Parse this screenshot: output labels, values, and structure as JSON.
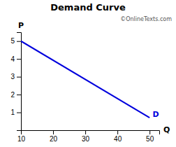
{
  "chart_data": {
    "type": "line",
    "title": "Demand Curve",
    "xlabel": "Q",
    "ylabel": "P",
    "x": [
      10,
      50
    ],
    "values": [
      5,
      0.7
    ],
    "color": "#0000DD",
    "xlim": [
      10,
      53
    ],
    "ylim": [
      0,
      5.5
    ],
    "xticks": [
      10,
      20,
      30,
      40,
      50
    ],
    "yticks": [
      1,
      2,
      3,
      4,
      5
    ],
    "grid": false,
    "annotations": [
      {
        "text": "D",
        "x": 50.5,
        "y": 0.85
      },
      {
        "text": "©"
      },
      {
        "text": "OnlineTexts"
      },
      {
        "text": ".com"
      }
    ]
  }
}
